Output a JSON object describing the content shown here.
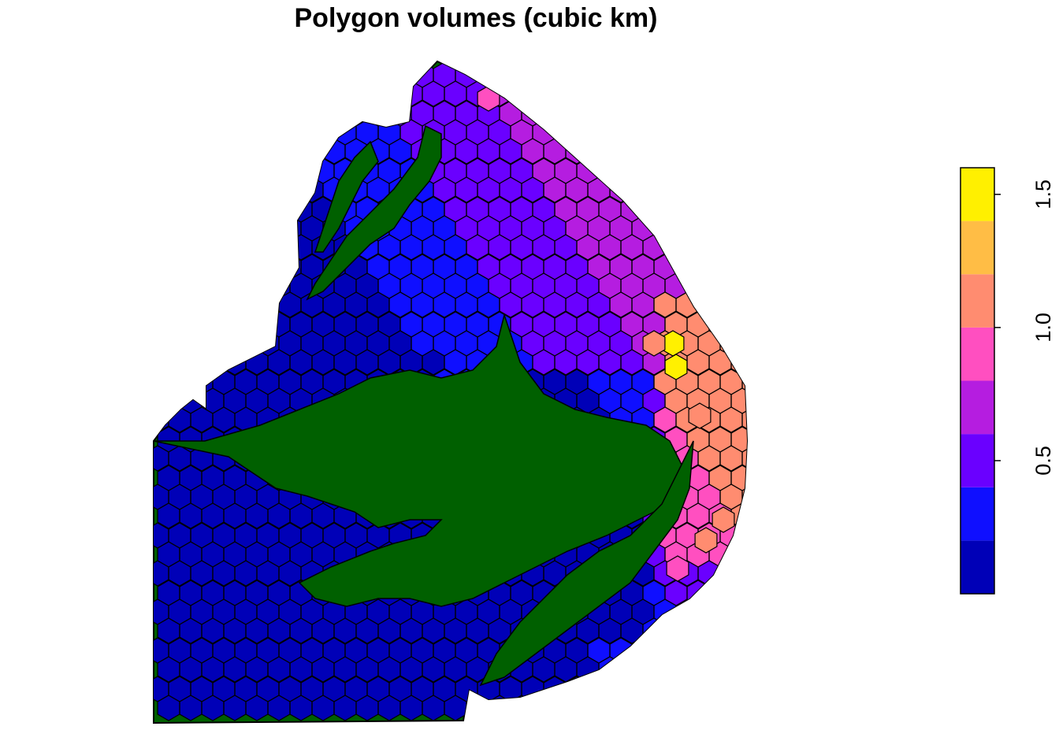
{
  "title": "Polygon volumes (cubic km)",
  "legend": {
    "colors": [
      "#0000B7",
      "#0F0FFF",
      "#6A00FF",
      "#B51DE0",
      "#FF4FC0",
      "#FF8C70",
      "#FFBD45",
      "#FFF000"
    ],
    "breaks": [
      0.0,
      0.2,
      0.4,
      0.6,
      0.8,
      1.0,
      1.2,
      1.4,
      1.6
    ],
    "ticks": [
      {
        "value": 0.5,
        "label": "0.5"
      },
      {
        "value": 1.0,
        "label": "1.0"
      },
      {
        "value": 1.5,
        "label": "1.5"
      }
    ]
  },
  "map": {
    "land_color": "#006000",
    "outline_color": "#000000"
  }
}
